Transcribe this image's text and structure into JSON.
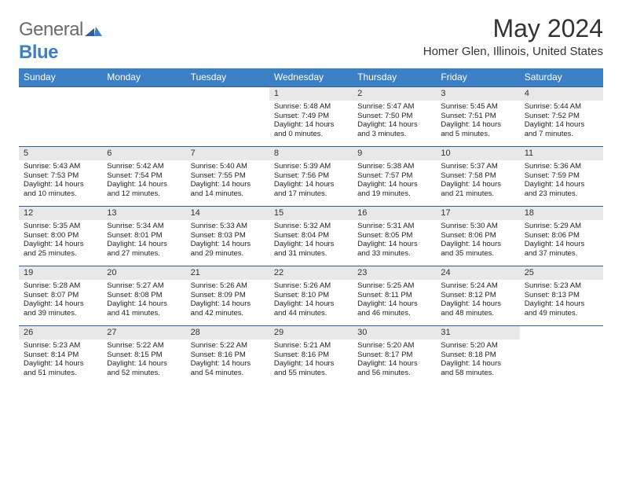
{
  "logo": {
    "general": "General",
    "blue": "Blue"
  },
  "title": "May 2024",
  "location": "Homer Glen, Illinois, United States",
  "colors": {
    "header_bg": "#3b7fc4",
    "header_text": "#ffffff",
    "band_bg": "#e8e8e8",
    "band_border": "#2d5f94",
    "text": "#222222"
  },
  "weekdays": [
    "Sunday",
    "Monday",
    "Tuesday",
    "Wednesday",
    "Thursday",
    "Friday",
    "Saturday"
  ],
  "weeks": [
    [
      null,
      null,
      null,
      {
        "n": "1",
        "sr": "5:48 AM",
        "ss": "7:49 PM",
        "dl": "14 hours and 0 minutes."
      },
      {
        "n": "2",
        "sr": "5:47 AM",
        "ss": "7:50 PM",
        "dl": "14 hours and 3 minutes."
      },
      {
        "n": "3",
        "sr": "5:45 AM",
        "ss": "7:51 PM",
        "dl": "14 hours and 5 minutes."
      },
      {
        "n": "4",
        "sr": "5:44 AM",
        "ss": "7:52 PM",
        "dl": "14 hours and 7 minutes."
      }
    ],
    [
      {
        "n": "5",
        "sr": "5:43 AM",
        "ss": "7:53 PM",
        "dl": "14 hours and 10 minutes."
      },
      {
        "n": "6",
        "sr": "5:42 AM",
        "ss": "7:54 PM",
        "dl": "14 hours and 12 minutes."
      },
      {
        "n": "7",
        "sr": "5:40 AM",
        "ss": "7:55 PM",
        "dl": "14 hours and 14 minutes."
      },
      {
        "n": "8",
        "sr": "5:39 AM",
        "ss": "7:56 PM",
        "dl": "14 hours and 17 minutes."
      },
      {
        "n": "9",
        "sr": "5:38 AM",
        "ss": "7:57 PM",
        "dl": "14 hours and 19 minutes."
      },
      {
        "n": "10",
        "sr": "5:37 AM",
        "ss": "7:58 PM",
        "dl": "14 hours and 21 minutes."
      },
      {
        "n": "11",
        "sr": "5:36 AM",
        "ss": "7:59 PM",
        "dl": "14 hours and 23 minutes."
      }
    ],
    [
      {
        "n": "12",
        "sr": "5:35 AM",
        "ss": "8:00 PM",
        "dl": "14 hours and 25 minutes."
      },
      {
        "n": "13",
        "sr": "5:34 AM",
        "ss": "8:01 PM",
        "dl": "14 hours and 27 minutes."
      },
      {
        "n": "14",
        "sr": "5:33 AM",
        "ss": "8:03 PM",
        "dl": "14 hours and 29 minutes."
      },
      {
        "n": "15",
        "sr": "5:32 AM",
        "ss": "8:04 PM",
        "dl": "14 hours and 31 minutes."
      },
      {
        "n": "16",
        "sr": "5:31 AM",
        "ss": "8:05 PM",
        "dl": "14 hours and 33 minutes."
      },
      {
        "n": "17",
        "sr": "5:30 AM",
        "ss": "8:06 PM",
        "dl": "14 hours and 35 minutes."
      },
      {
        "n": "18",
        "sr": "5:29 AM",
        "ss": "8:06 PM",
        "dl": "14 hours and 37 minutes."
      }
    ],
    [
      {
        "n": "19",
        "sr": "5:28 AM",
        "ss": "8:07 PM",
        "dl": "14 hours and 39 minutes."
      },
      {
        "n": "20",
        "sr": "5:27 AM",
        "ss": "8:08 PM",
        "dl": "14 hours and 41 minutes."
      },
      {
        "n": "21",
        "sr": "5:26 AM",
        "ss": "8:09 PM",
        "dl": "14 hours and 42 minutes."
      },
      {
        "n": "22",
        "sr": "5:26 AM",
        "ss": "8:10 PM",
        "dl": "14 hours and 44 minutes."
      },
      {
        "n": "23",
        "sr": "5:25 AM",
        "ss": "8:11 PM",
        "dl": "14 hours and 46 minutes."
      },
      {
        "n": "24",
        "sr": "5:24 AM",
        "ss": "8:12 PM",
        "dl": "14 hours and 48 minutes."
      },
      {
        "n": "25",
        "sr": "5:23 AM",
        "ss": "8:13 PM",
        "dl": "14 hours and 49 minutes."
      }
    ],
    [
      {
        "n": "26",
        "sr": "5:23 AM",
        "ss": "8:14 PM",
        "dl": "14 hours and 51 minutes."
      },
      {
        "n": "27",
        "sr": "5:22 AM",
        "ss": "8:15 PM",
        "dl": "14 hours and 52 minutes."
      },
      {
        "n": "28",
        "sr": "5:22 AM",
        "ss": "8:16 PM",
        "dl": "14 hours and 54 minutes."
      },
      {
        "n": "29",
        "sr": "5:21 AM",
        "ss": "8:16 PM",
        "dl": "14 hours and 55 minutes."
      },
      {
        "n": "30",
        "sr": "5:20 AM",
        "ss": "8:17 PM",
        "dl": "14 hours and 56 minutes."
      },
      {
        "n": "31",
        "sr": "5:20 AM",
        "ss": "8:18 PM",
        "dl": "14 hours and 58 minutes."
      },
      null
    ]
  ],
  "labels": {
    "sunrise": "Sunrise:",
    "sunset": "Sunset:",
    "daylight": "Daylight:"
  }
}
